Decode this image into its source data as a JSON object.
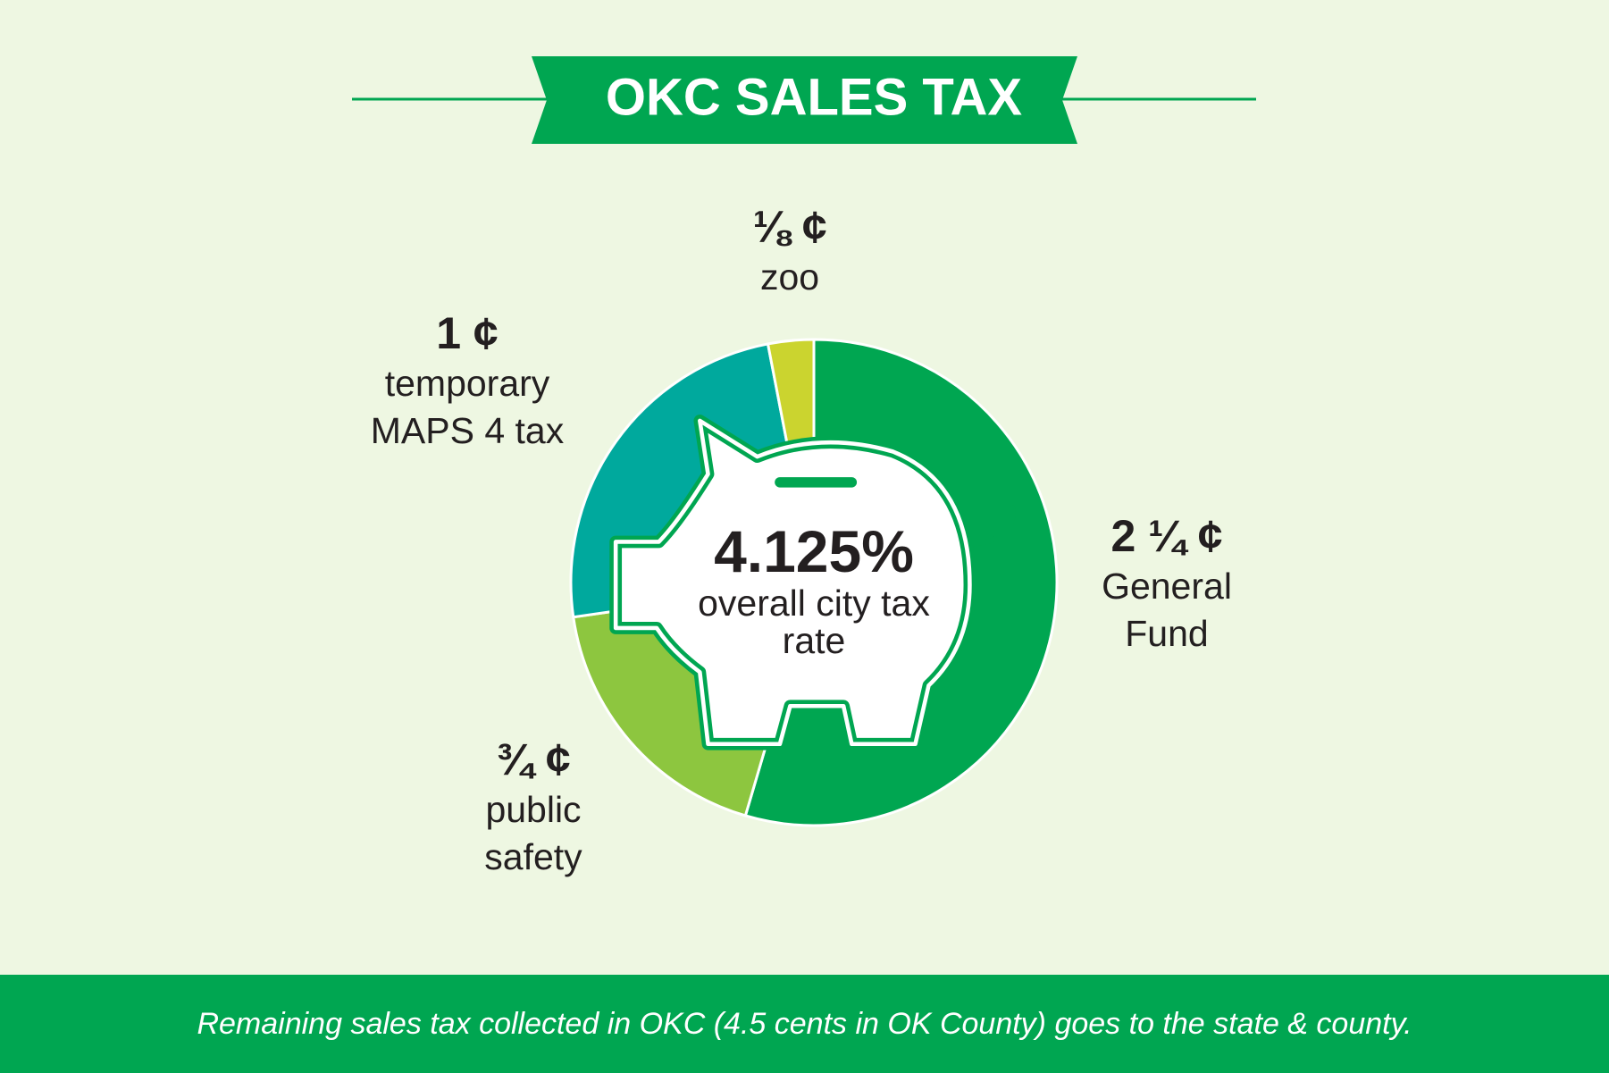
{
  "chart_data": {
    "type": "pie",
    "title": "OKC SALES TAX",
    "categories": [
      "General Fund",
      "public safety",
      "temporary MAPS 4 tax",
      "zoo"
    ],
    "values": [
      2.25,
      0.75,
      1,
      0.125
    ],
    "value_labels": [
      "2 ¼ ¢",
      "¾ ¢",
      "1 ¢",
      "⅛ ¢"
    ],
    "colors": [
      "#00a651",
      "#8dc63f",
      "#00a99d",
      "#cbd42f"
    ],
    "center_value": "4.125%",
    "center_label": "overall city tax rate",
    "footnote": "Remaining sales tax collected in OKC (4.5 cents in OK County) goes to the state & county."
  }
}
